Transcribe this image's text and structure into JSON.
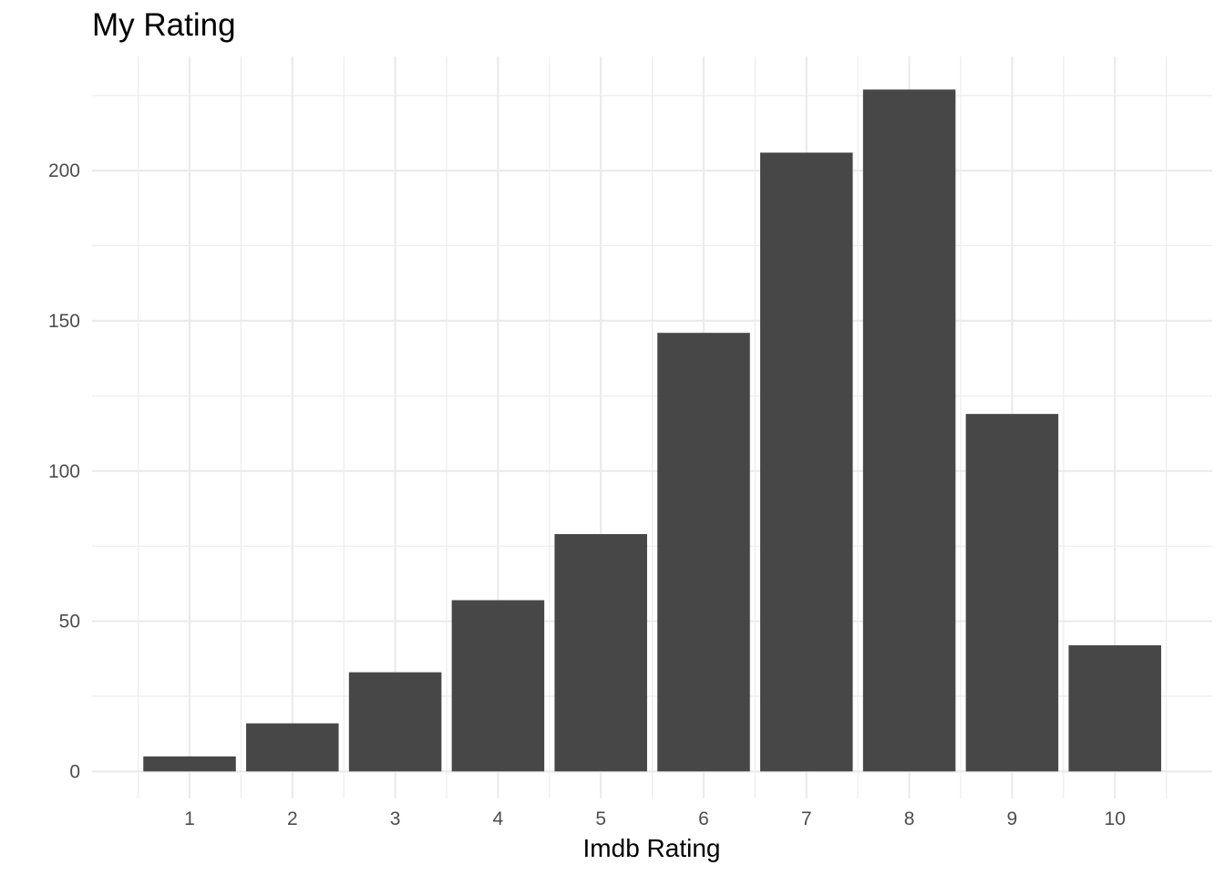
{
  "chart_data": {
    "type": "bar",
    "title": "My Rating",
    "xlabel": "Imdb Rating",
    "ylabel": "",
    "categories": [
      "1",
      "2",
      "3",
      "4",
      "5",
      "6",
      "7",
      "8",
      "9",
      "10"
    ],
    "values": [
      5,
      16,
      33,
      57,
      79,
      146,
      206,
      227,
      119,
      42
    ],
    "ylim": [
      -9,
      238
    ],
    "yticks": [
      0,
      50,
      100,
      150,
      200
    ],
    "ytick_labels": [
      "0",
      "50",
      "100",
      "150",
      "200"
    ],
    "grid": true,
    "bar_color": "#474747",
    "grid_color": "#ebebeb",
    "legend": "none"
  }
}
